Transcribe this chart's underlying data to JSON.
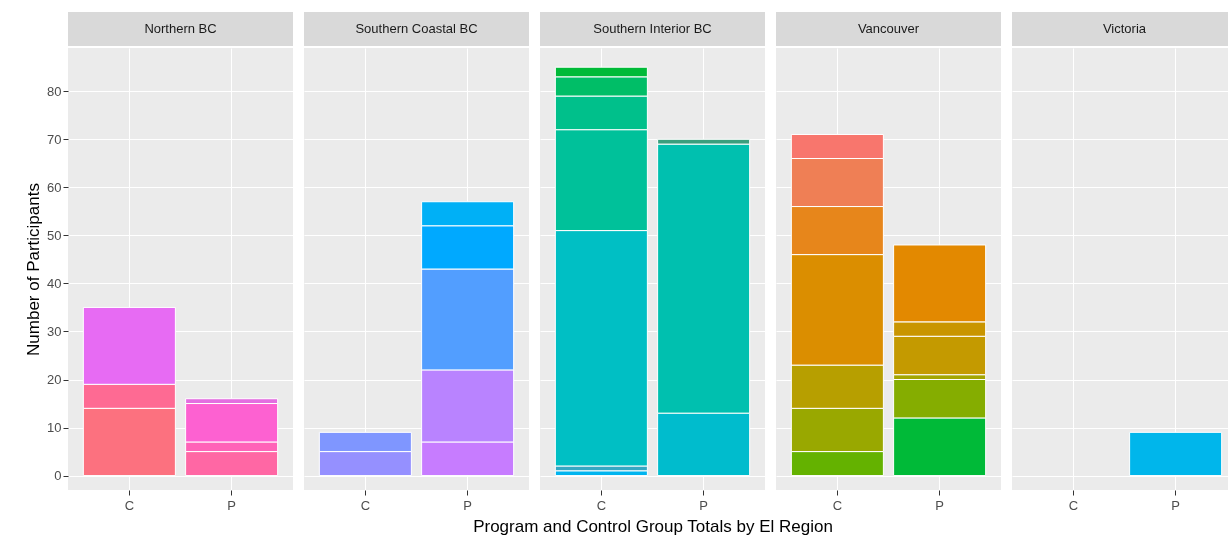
{
  "chart_data": [
    {
      "type": "bar",
      "title": "Northern BC",
      "ylabel": "Number of Participants",
      "categories": [
        "C",
        "P"
      ],
      "stacked": true,
      "ylim": [
        -3,
        89
      ],
      "yticks": [
        0,
        10,
        20,
        30,
        40,
        50,
        60,
        70,
        80
      ],
      "grid": true,
      "series": [
        {
          "colors": [
            "#fc717f",
            "#ff67a4"
          ],
          "values": [
            14,
            5
          ]
        },
        {
          "colors": [
            "#fe6a93",
            "#ff63b8"
          ],
          "values": [
            5,
            2
          ]
        },
        {
          "colors": [
            "#e76bf3",
            "#fd61d1"
          ],
          "values": [
            16,
            8
          ]
        },
        {
          "colors": [
            null,
            "#e36ee0"
          ],
          "values": [
            null,
            1
          ]
        }
      ]
    },
    {
      "type": "bar",
      "title": "Southern Coastal BC",
      "categories": [
        "C",
        "P"
      ],
      "stacked": true,
      "ylim": [
        -3,
        89
      ],
      "yticks": [
        0,
        10,
        20,
        30,
        40,
        50,
        60,
        70,
        80
      ],
      "grid": true,
      "tick_labels": "x",
      "series": [
        {
          "colors": [
            "#9590ff",
            "#c77cff"
          ],
          "values": [
            5,
            7
          ]
        },
        {
          "colors": [
            "#7f96ff",
            "#b983ff"
          ],
          "values": [
            4,
            15
          ]
        },
        {
          "colors": [
            null,
            "#529eff"
          ],
          "values": [
            null,
            21
          ]
        },
        {
          "colors": [
            null,
            "#00a9ff"
          ],
          "values": [
            null,
            9
          ]
        },
        {
          "colors": [
            null,
            "#00b0f6"
          ],
          "values": [
            null,
            5
          ]
        }
      ]
    },
    {
      "type": "bar",
      "title": "Southern Interior BC",
      "xlabel": "Program and Control Group Totals by El Region",
      "categories": [
        "C",
        "P"
      ],
      "stacked": true,
      "ylim": [
        -3,
        89
      ],
      "yticks": [
        0,
        10,
        20,
        30,
        40,
        50,
        60,
        70,
        80
      ],
      "grid": true,
      "tick_labels": "x",
      "series": [
        {
          "colors": [
            "#00b4ef",
            "#00bccd"
          ],
          "values": [
            1,
            13
          ]
        },
        {
          "colors": [
            "#35a7c2",
            "#00c0af"
          ],
          "values": [
            1,
            56
          ]
        },
        {
          "colors": [
            "#00bfc4",
            "#3a9f7e"
          ],
          "values": [
            49,
            1
          ]
        },
        {
          "colors": [
            "#00c19a",
            null
          ],
          "values": [
            21,
            null
          ]
        },
        {
          "colors": [
            "#00c08b",
            null
          ],
          "values": [
            7,
            null
          ]
        },
        {
          "colors": [
            "#00be67",
            null
          ],
          "values": [
            4,
            null
          ]
        },
        {
          "colors": [
            "#00ba38",
            null
          ],
          "values": [
            2,
            null
          ]
        }
      ]
    },
    {
      "type": "bar",
      "title": "Vancouver",
      "categories": [
        "C",
        "P"
      ],
      "stacked": true,
      "ylim": [
        -3,
        89
      ],
      "yticks": [
        0,
        10,
        20,
        30,
        40,
        50,
        60,
        70,
        80
      ],
      "grid": true,
      "tick_labels": "x",
      "series": [
        {
          "colors": [
            "#64b200",
            "#00ba38"
          ],
          "values": [
            5,
            12
          ]
        },
        {
          "colors": [
            "#99a800",
            "#85ad00"
          ],
          "values": [
            9,
            8
          ]
        },
        {
          "colors": [
            "#b79f00",
            "#a3a500"
          ],
          "values": [
            9,
            1
          ]
        },
        {
          "colors": [
            "#db8e00",
            "#c49a00"
          ],
          "values": [
            23,
            8
          ]
        },
        {
          "colors": [
            "#e7861b",
            "#c99500"
          ],
          "values": [
            10,
            3
          ]
        },
        {
          "colors": [
            "#ef7f55",
            "#e38900"
          ],
          "values": [
            10,
            16
          ]
        },
        {
          "colors": [
            "#f8766d",
            null
          ],
          "values": [
            5,
            null
          ]
        }
      ]
    },
    {
      "type": "bar",
      "title": "Victoria",
      "categories": [
        "C",
        "P"
      ],
      "stacked": true,
      "ylim": [
        -3,
        89
      ],
      "yticks": [
        0,
        10,
        20,
        30,
        40,
        50,
        60,
        70,
        80
      ],
      "grid": true,
      "tick_labels": "x",
      "series": [
        {
          "colors": [
            null,
            "#00b6eb"
          ],
          "values": [
            null,
            9
          ]
        }
      ]
    }
  ]
}
